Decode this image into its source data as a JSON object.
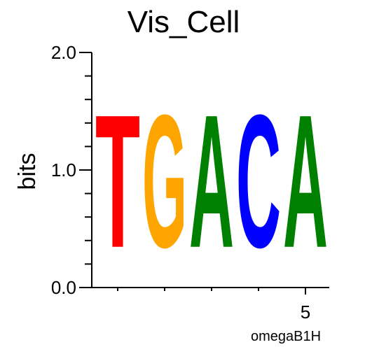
{
  "chart_data": {
    "type": "sequence-logo",
    "title": "Vis_Cell",
    "ylabel": "bits",
    "xlabel": "omegaB1H",
    "ylim": [
      0,
      2
    ],
    "y_ticks": [
      {
        "value": 0,
        "label": "0.0"
      },
      {
        "value": 1,
        "label": "1.0"
      },
      {
        "value": 2,
        "label": "2.0"
      }
    ],
    "x_ticks": [
      {
        "position": 5,
        "label": "5"
      }
    ],
    "positions": [
      1,
      2,
      3,
      4,
      5
    ],
    "letters": [
      {
        "position": 1,
        "letter": "T",
        "bits": 1.8,
        "color": "#ff0000"
      },
      {
        "position": 2,
        "letter": "G",
        "bits": 1.8,
        "color": "#ffa500"
      },
      {
        "position": 3,
        "letter": "A",
        "bits": 1.8,
        "color": "#008000"
      },
      {
        "position": 4,
        "letter": "C",
        "bits": 1.8,
        "color": "#0000ff"
      },
      {
        "position": 5,
        "letter": "A",
        "bits": 1.8,
        "color": "#008000"
      }
    ]
  }
}
